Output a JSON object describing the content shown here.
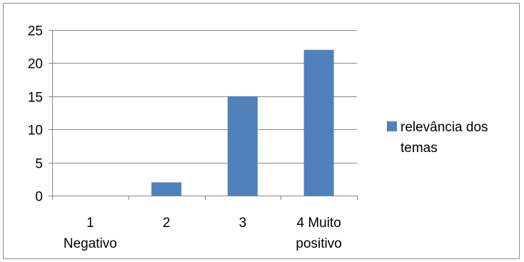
{
  "chart_data": {
    "type": "bar",
    "categories": [
      [
        "1",
        "Negativo"
      ],
      [
        "2"
      ],
      [
        "3"
      ],
      [
        "4 Muito",
        "positivo"
      ]
    ],
    "series": [
      {
        "name": "relevância dos temas",
        "values": [
          0,
          2,
          15,
          22
        ],
        "color": "#4f81bd"
      }
    ],
    "ylim": [
      0,
      25
    ],
    "yticks": [
      0,
      5,
      10,
      15,
      20,
      25
    ],
    "grid": true,
    "legend_position": "right",
    "legend_lines": [
      "relevância dos",
      "temas"
    ]
  }
}
